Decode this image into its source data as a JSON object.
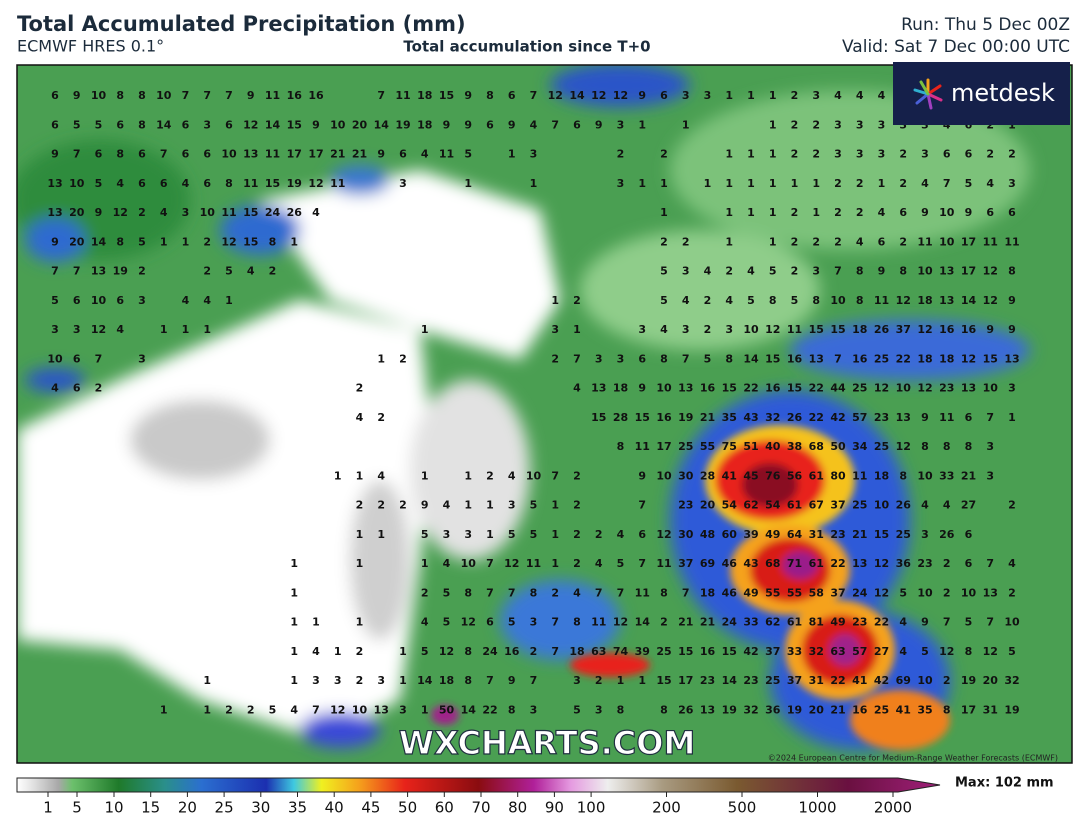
{
  "header": {
    "title": "Total Accumulated Precipitation (mm)",
    "model": "ECMWF HRES 0.1°",
    "subtitle": "Total accumulation since T+0",
    "run": "Run: Thu 5 Dec 00Z",
    "valid": "Valid: Sat 7 Dec 00:00 UTC"
  },
  "logo": "metdesk",
  "map": {
    "rows": [
      [
        6,
        9,
        10,
        8,
        8,
        10,
        7,
        7,
        7,
        9,
        11,
        16,
        16,
        null,
        null,
        7,
        11,
        18,
        15,
        9,
        8,
        6,
        7,
        12,
        14,
        12,
        12,
        9,
        6,
        3,
        3,
        1,
        1,
        1,
        2,
        3,
        4,
        4,
        4
      ],
      [
        6,
        5,
        5,
        6,
        8,
        14,
        6,
        3,
        6,
        12,
        14,
        15,
        9,
        10,
        20,
        14,
        19,
        18,
        9,
        9,
        6,
        9,
        4,
        7,
        6,
        9,
        3,
        1,
        null,
        1,
        null,
        null,
        null,
        1,
        2,
        2,
        3,
        3,
        3,
        3,
        3,
        4,
        6,
        2,
        1
      ],
      [
        9,
        7,
        6,
        8,
        6,
        7,
        6,
        6,
        10,
        13,
        11,
        17,
        17,
        21,
        21,
        9,
        6,
        4,
        11,
        5,
        null,
        1,
        3,
        null,
        null,
        null,
        2,
        null,
        2,
        null,
        null,
        1,
        1,
        1,
        2,
        2,
        3,
        3,
        3,
        2,
        3,
        6,
        6,
        2,
        2
      ],
      [
        13,
        10,
        5,
        4,
        6,
        6,
        4,
        6,
        8,
        11,
        15,
        19,
        12,
        11,
        null,
        null,
        3,
        null,
        null,
        1,
        null,
        null,
        1,
        null,
        null,
        null,
        3,
        1,
        1,
        null,
        1,
        1,
        1,
        1,
        1,
        1,
        2,
        2,
        1,
        2,
        4,
        7,
        5,
        4,
        3
      ],
      [
        13,
        20,
        9,
        12,
        2,
        4,
        3,
        10,
        11,
        15,
        24,
        26,
        4,
        null,
        null,
        null,
        null,
        null,
        null,
        null,
        null,
        null,
        null,
        null,
        null,
        null,
        null,
        null,
        1,
        null,
        null,
        1,
        1,
        1,
        2,
        1,
        2,
        2,
        4,
        6,
        9,
        10,
        9,
        6,
        6
      ],
      [
        9,
        20,
        14,
        8,
        5,
        1,
        1,
        2,
        12,
        15,
        8,
        1,
        null,
        null,
        null,
        null,
        null,
        null,
        null,
        null,
        null,
        null,
        null,
        null,
        null,
        null,
        null,
        null,
        2,
        2,
        null,
        1,
        null,
        1,
        2,
        2,
        2,
        4,
        6,
        2,
        11,
        10,
        17,
        11,
        11
      ],
      [
        7,
        7,
        13,
        19,
        2,
        null,
        null,
        2,
        5,
        4,
        2,
        null,
        null,
        null,
        null,
        null,
        null,
        null,
        null,
        null,
        null,
        null,
        null,
        null,
        null,
        null,
        null,
        null,
        5,
        3,
        4,
        2,
        4,
        5,
        2,
        3,
        7,
        8,
        9,
        8,
        10,
        13,
        17,
        12,
        8
      ],
      [
        5,
        6,
        10,
        6,
        3,
        null,
        4,
        4,
        1,
        null,
        null,
        null,
        null,
        null,
        null,
        null,
        null,
        null,
        null,
        null,
        null,
        null,
        null,
        1,
        2,
        null,
        null,
        null,
        5,
        4,
        2,
        4,
        5,
        8,
        5,
        8,
        10,
        8,
        11,
        12,
        18,
        13,
        14,
        12,
        9
      ],
      [
        3,
        3,
        12,
        4,
        null,
        1,
        1,
        1,
        null,
        null,
        null,
        null,
        null,
        null,
        null,
        null,
        null,
        1,
        null,
        null,
        null,
        null,
        null,
        3,
        1,
        null,
        null,
        3,
        4,
        3,
        2,
        3,
        10,
        12,
        11,
        15,
        15,
        18,
        26,
        37,
        12,
        16,
        16,
        9,
        9
      ],
      [
        10,
        6,
        7,
        null,
        3,
        null,
        null,
        null,
        null,
        null,
        null,
        null,
        null,
        null,
        null,
        1,
        2,
        null,
        null,
        null,
        null,
        null,
        null,
        2,
        7,
        3,
        3,
        6,
        8,
        7,
        5,
        8,
        14,
        15,
        16,
        13,
        7,
        16,
        25,
        22,
        18,
        18,
        12,
        15,
        13
      ],
      [
        4,
        6,
        2,
        null,
        null,
        null,
        null,
        null,
        null,
        null,
        null,
        null,
        null,
        null,
        2,
        null,
        null,
        null,
        null,
        null,
        null,
        null,
        null,
        null,
        4,
        13,
        18,
        9,
        10,
        13,
        16,
        15,
        22,
        16,
        15,
        22,
        44,
        25,
        12,
        10,
        12,
        23,
        13,
        10,
        3
      ],
      [
        null,
        null,
        null,
        null,
        null,
        null,
        null,
        null,
        null,
        null,
        null,
        null,
        null,
        null,
        4,
        2,
        null,
        null,
        null,
        null,
        null,
        null,
        null,
        null,
        null,
        15,
        28,
        15,
        16,
        19,
        21,
        35,
        43,
        32,
        26,
        22,
        42,
        57,
        23,
        13,
        9,
        11,
        6,
        7,
        1
      ],
      [
        null,
        null,
        null,
        null,
        null,
        null,
        null,
        null,
        null,
        null,
        null,
        null,
        null,
        null,
        null,
        null,
        null,
        null,
        null,
        null,
        null,
        null,
        null,
        null,
        null,
        null,
        8,
        11,
        17,
        25,
        55,
        75,
        51,
        40,
        38,
        68,
        50,
        34,
        25,
        12,
        8,
        8,
        8,
        3
      ],
      [
        null,
        null,
        null,
        null,
        null,
        null,
        null,
        null,
        null,
        null,
        null,
        null,
        null,
        1,
        1,
        4,
        null,
        1,
        null,
        1,
        2,
        4,
        10,
        7,
        2,
        null,
        null,
        9,
        10,
        30,
        28,
        41,
        45,
        76,
        56,
        61,
        80,
        11,
        18,
        8,
        10,
        33,
        21,
        3
      ],
      [
        null,
        null,
        null,
        null,
        null,
        null,
        null,
        null,
        null,
        null,
        null,
        null,
        null,
        null,
        2,
        2,
        2,
        9,
        4,
        1,
        1,
        3,
        5,
        1,
        2,
        null,
        null,
        7,
        null,
        23,
        20,
        54,
        62,
        54,
        61,
        67,
        37,
        25,
        10,
        26,
        4,
        4,
        27,
        null,
        2
      ],
      [
        null,
        null,
        null,
        null,
        null,
        null,
        null,
        null,
        null,
        null,
        null,
        null,
        null,
        null,
        1,
        1,
        null,
        5,
        3,
        3,
        1,
        5,
        5,
        1,
        2,
        2,
        4,
        6,
        12,
        30,
        48,
        60,
        39,
        49,
        64,
        31,
        23,
        21,
        15,
        25,
        3,
        26,
        6
      ],
      [
        null,
        null,
        null,
        null,
        null,
        null,
        null,
        null,
        null,
        null,
        null,
        1,
        null,
        null,
        1,
        null,
        null,
        1,
        4,
        10,
        7,
        12,
        11,
        1,
        2,
        4,
        5,
        7,
        11,
        37,
        69,
        46,
        43,
        68,
        71,
        61,
        22,
        13,
        12,
        36,
        23,
        2,
        6,
        7,
        4
      ],
      [
        null,
        null,
        null,
        null,
        null,
        null,
        null,
        null,
        null,
        null,
        null,
        1,
        null,
        null,
        null,
        null,
        null,
        2,
        5,
        8,
        7,
        7,
        8,
        2,
        4,
        7,
        7,
        11,
        8,
        7,
        18,
        46,
        49,
        55,
        55,
        58,
        37,
        24,
        12,
        5,
        10,
        2,
        10,
        13,
        2
      ],
      [
        null,
        null,
        null,
        null,
        null,
        null,
        null,
        null,
        null,
        null,
        null,
        1,
        1,
        null,
        1,
        null,
        null,
        4,
        5,
        12,
        6,
        5,
        3,
        7,
        8,
        11,
        12,
        14,
        2,
        21,
        21,
        24,
        33,
        62,
        61,
        81,
        49,
        23,
        22,
        4,
        9,
        7,
        5,
        7,
        10
      ],
      [
        null,
        null,
        null,
        null,
        null,
        null,
        null,
        null,
        null,
        null,
        null,
        1,
        4,
        1,
        2,
        null,
        1,
        5,
        12,
        8,
        24,
        16,
        2,
        7,
        18,
        63,
        74,
        39,
        25,
        15,
        16,
        15,
        42,
        37,
        33,
        32,
        63,
        57,
        27,
        4,
        5,
        12,
        8,
        12,
        5
      ],
      [
        null,
        null,
        null,
        null,
        null,
        null,
        null,
        1,
        null,
        null,
        null,
        1,
        3,
        3,
        2,
        3,
        1,
        14,
        18,
        8,
        7,
        9,
        7,
        null,
        3,
        2,
        1,
        1,
        15,
        17,
        23,
        14,
        23,
        25,
        37,
        31,
        22,
        41,
        42,
        69,
        10,
        2,
        19,
        20,
        32
      ],
      [
        null,
        null,
        null,
        null,
        null,
        1,
        null,
        1,
        2,
        2,
        5,
        4,
        7,
        12,
        10,
        13,
        3,
        1,
        50,
        14,
        22,
        8,
        3,
        null,
        5,
        3,
        8,
        null,
        8,
        26,
        13,
        19,
        32,
        36,
        19,
        20,
        21,
        16,
        25,
        41,
        35,
        8,
        17,
        31,
        19
      ]
    ]
  },
  "watermark": "WXCHARTS.COM",
  "copyright": "©2024 European Centre for Medium-Range Weather Forecasts (ECMWF)",
  "colorbar": {
    "ticks": [
      1,
      5,
      10,
      15,
      20,
      25,
      30,
      35,
      40,
      45,
      50,
      60,
      70,
      80,
      90,
      100,
      200,
      500,
      1000,
      2000
    ],
    "max_label": "Max: 102 mm"
  }
}
